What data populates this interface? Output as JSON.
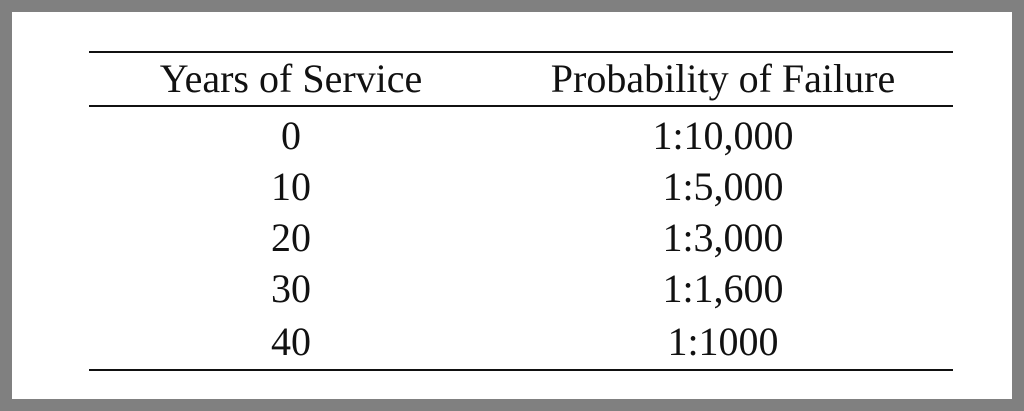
{
  "table": {
    "headers": [
      "Years of Service",
      "Probability of Failure"
    ],
    "rows": [
      [
        "0",
        "1:10,000"
      ],
      [
        "10",
        "1:5,000"
      ],
      [
        "20",
        "1:3,000"
      ],
      [
        "30",
        "1:1,600"
      ],
      [
        "40",
        "1:1000"
      ]
    ]
  }
}
